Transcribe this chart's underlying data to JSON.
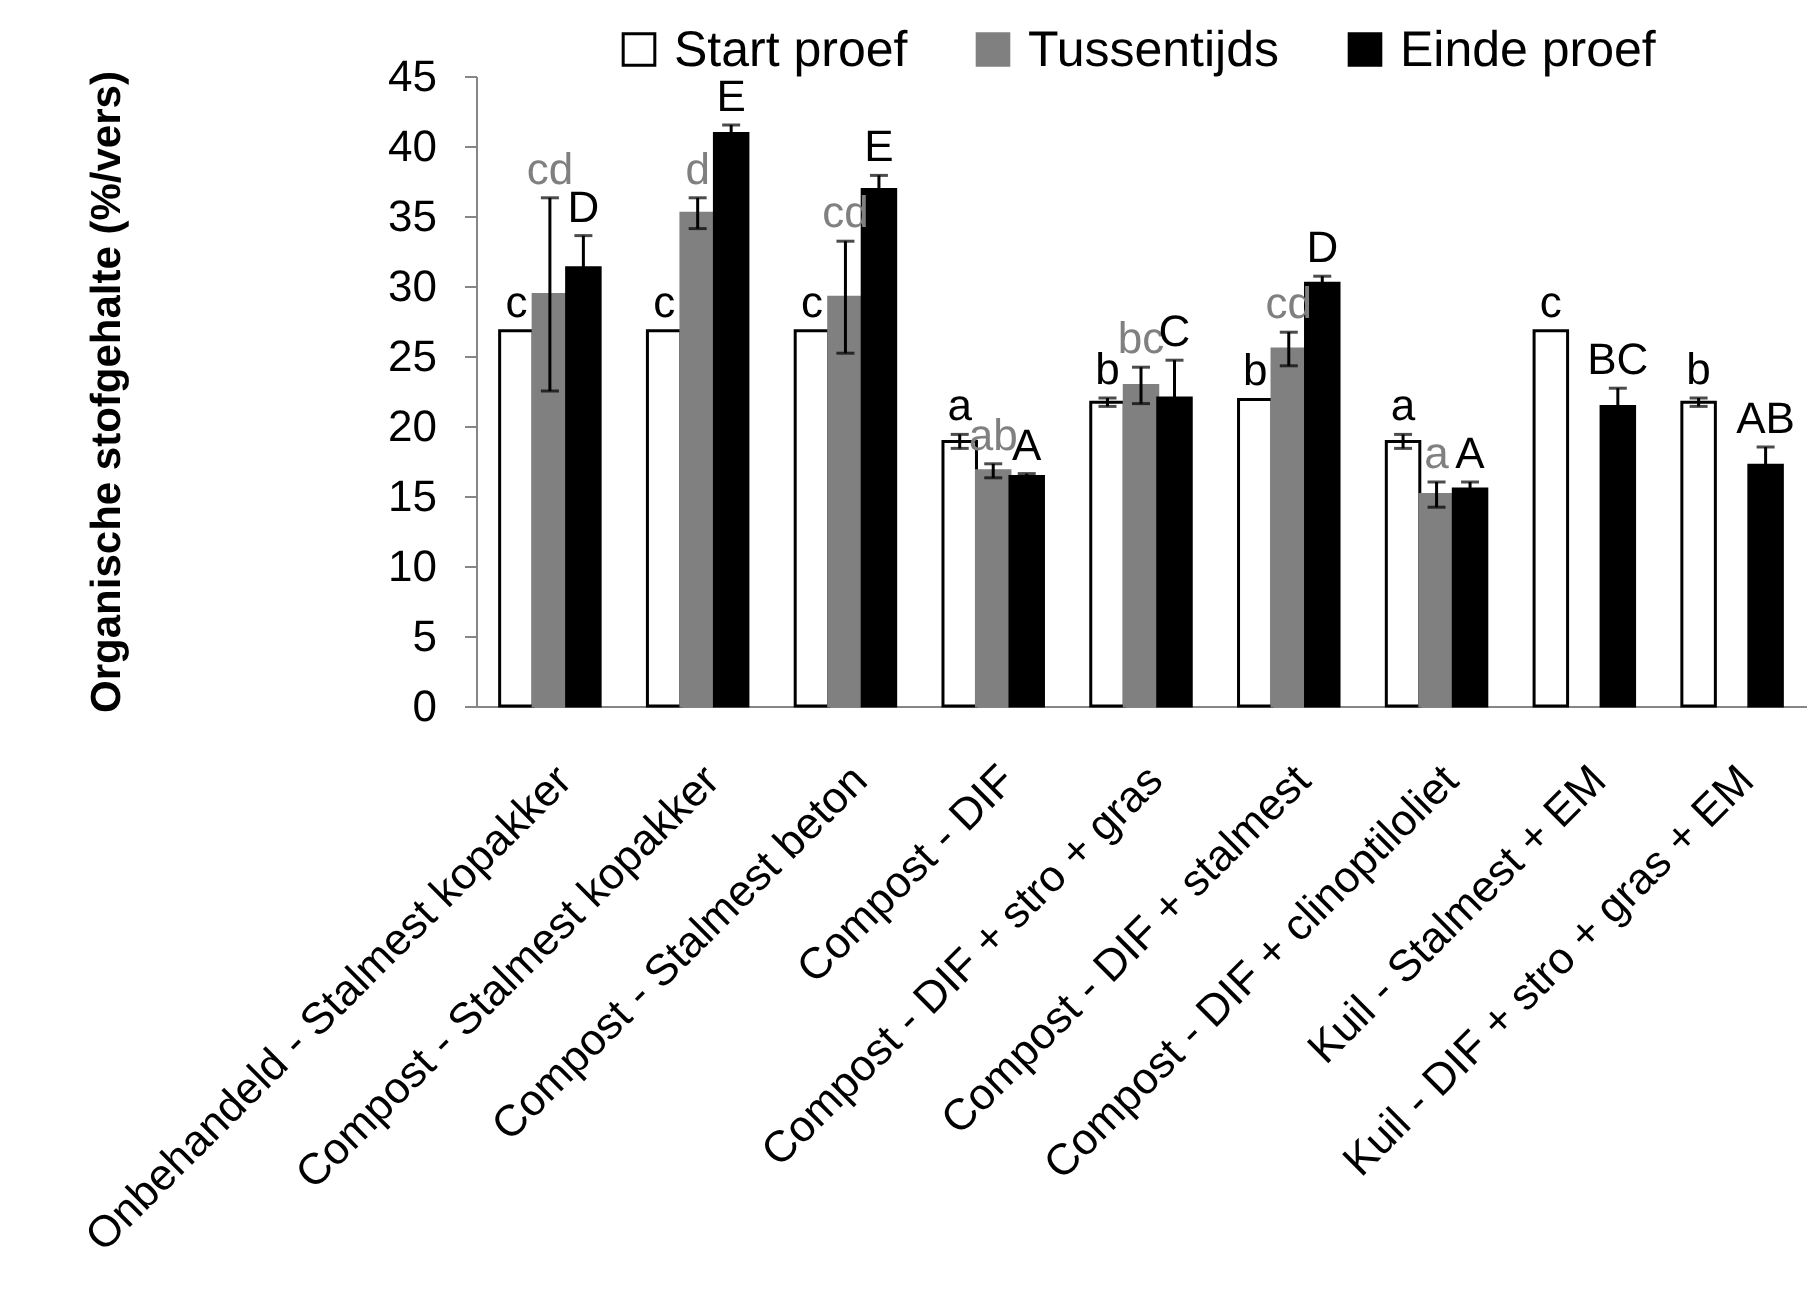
{
  "chart_data": {
    "type": "bar",
    "ylabel": "Organische stofgehalte (%/vers)",
    "categories": [
      "Onbehandeld - Stalmest kopakker",
      "Compost - Stalmest kopakker",
      "Compost - Stalmest beton",
      "Compost - DIF",
      "Compost - DIF + stro + gras",
      "Compost - DIF + stalmest",
      "Compost - DIF + clinoptiloliet",
      "Kuil - Stalmest + EM",
      "Kuil - DIF + stro + gras + EM"
    ],
    "ylim": [
      0,
      45
    ],
    "yticks": [
      0,
      5,
      10,
      15,
      20,
      25,
      30,
      35,
      40,
      45
    ],
    "legend": "top",
    "series": [
      {
        "name": "Start proef",
        "color": "#ffffff",
        "values": [
          26.8,
          26.8,
          26.8,
          18.9,
          21.7,
          21.9,
          18.9,
          26.8,
          21.7
        ],
        "errors": [
          null,
          null,
          null,
          0.5,
          0.3,
          null,
          0.5,
          null,
          0.3
        ],
        "value_labels": [
          "c",
          "c",
          "c",
          "a",
          "b",
          "b",
          "a",
          "c",
          "b"
        ]
      },
      {
        "name": "Tussentijds",
        "color": "#808080",
        "values": [
          29.4,
          35.2,
          29.2,
          16.8,
          22.9,
          25.5,
          15.1,
          null,
          null
        ],
        "errors": [
          6.9,
          1.1,
          4.0,
          0.5,
          1.3,
          1.2,
          0.9,
          null,
          null
        ],
        "value_labels": [
          "cd",
          "d",
          "cd",
          "ab",
          "bc",
          "cd",
          "a",
          null,
          null
        ]
      },
      {
        "name": "Einde proef",
        "color": "#000000",
        "values": [
          31.3,
          40.9,
          36.9,
          16.4,
          22.0,
          30.2,
          15.5,
          21.4,
          17.2
        ],
        "errors": [
          2.3,
          0.6,
          1.0,
          0.2,
          2.7,
          0.5,
          0.5,
          1.3,
          1.3
        ],
        "value_labels": [
          "D",
          "E",
          "E",
          "A",
          "C",
          "D",
          "A",
          "BC",
          "AB"
        ]
      }
    ]
  }
}
